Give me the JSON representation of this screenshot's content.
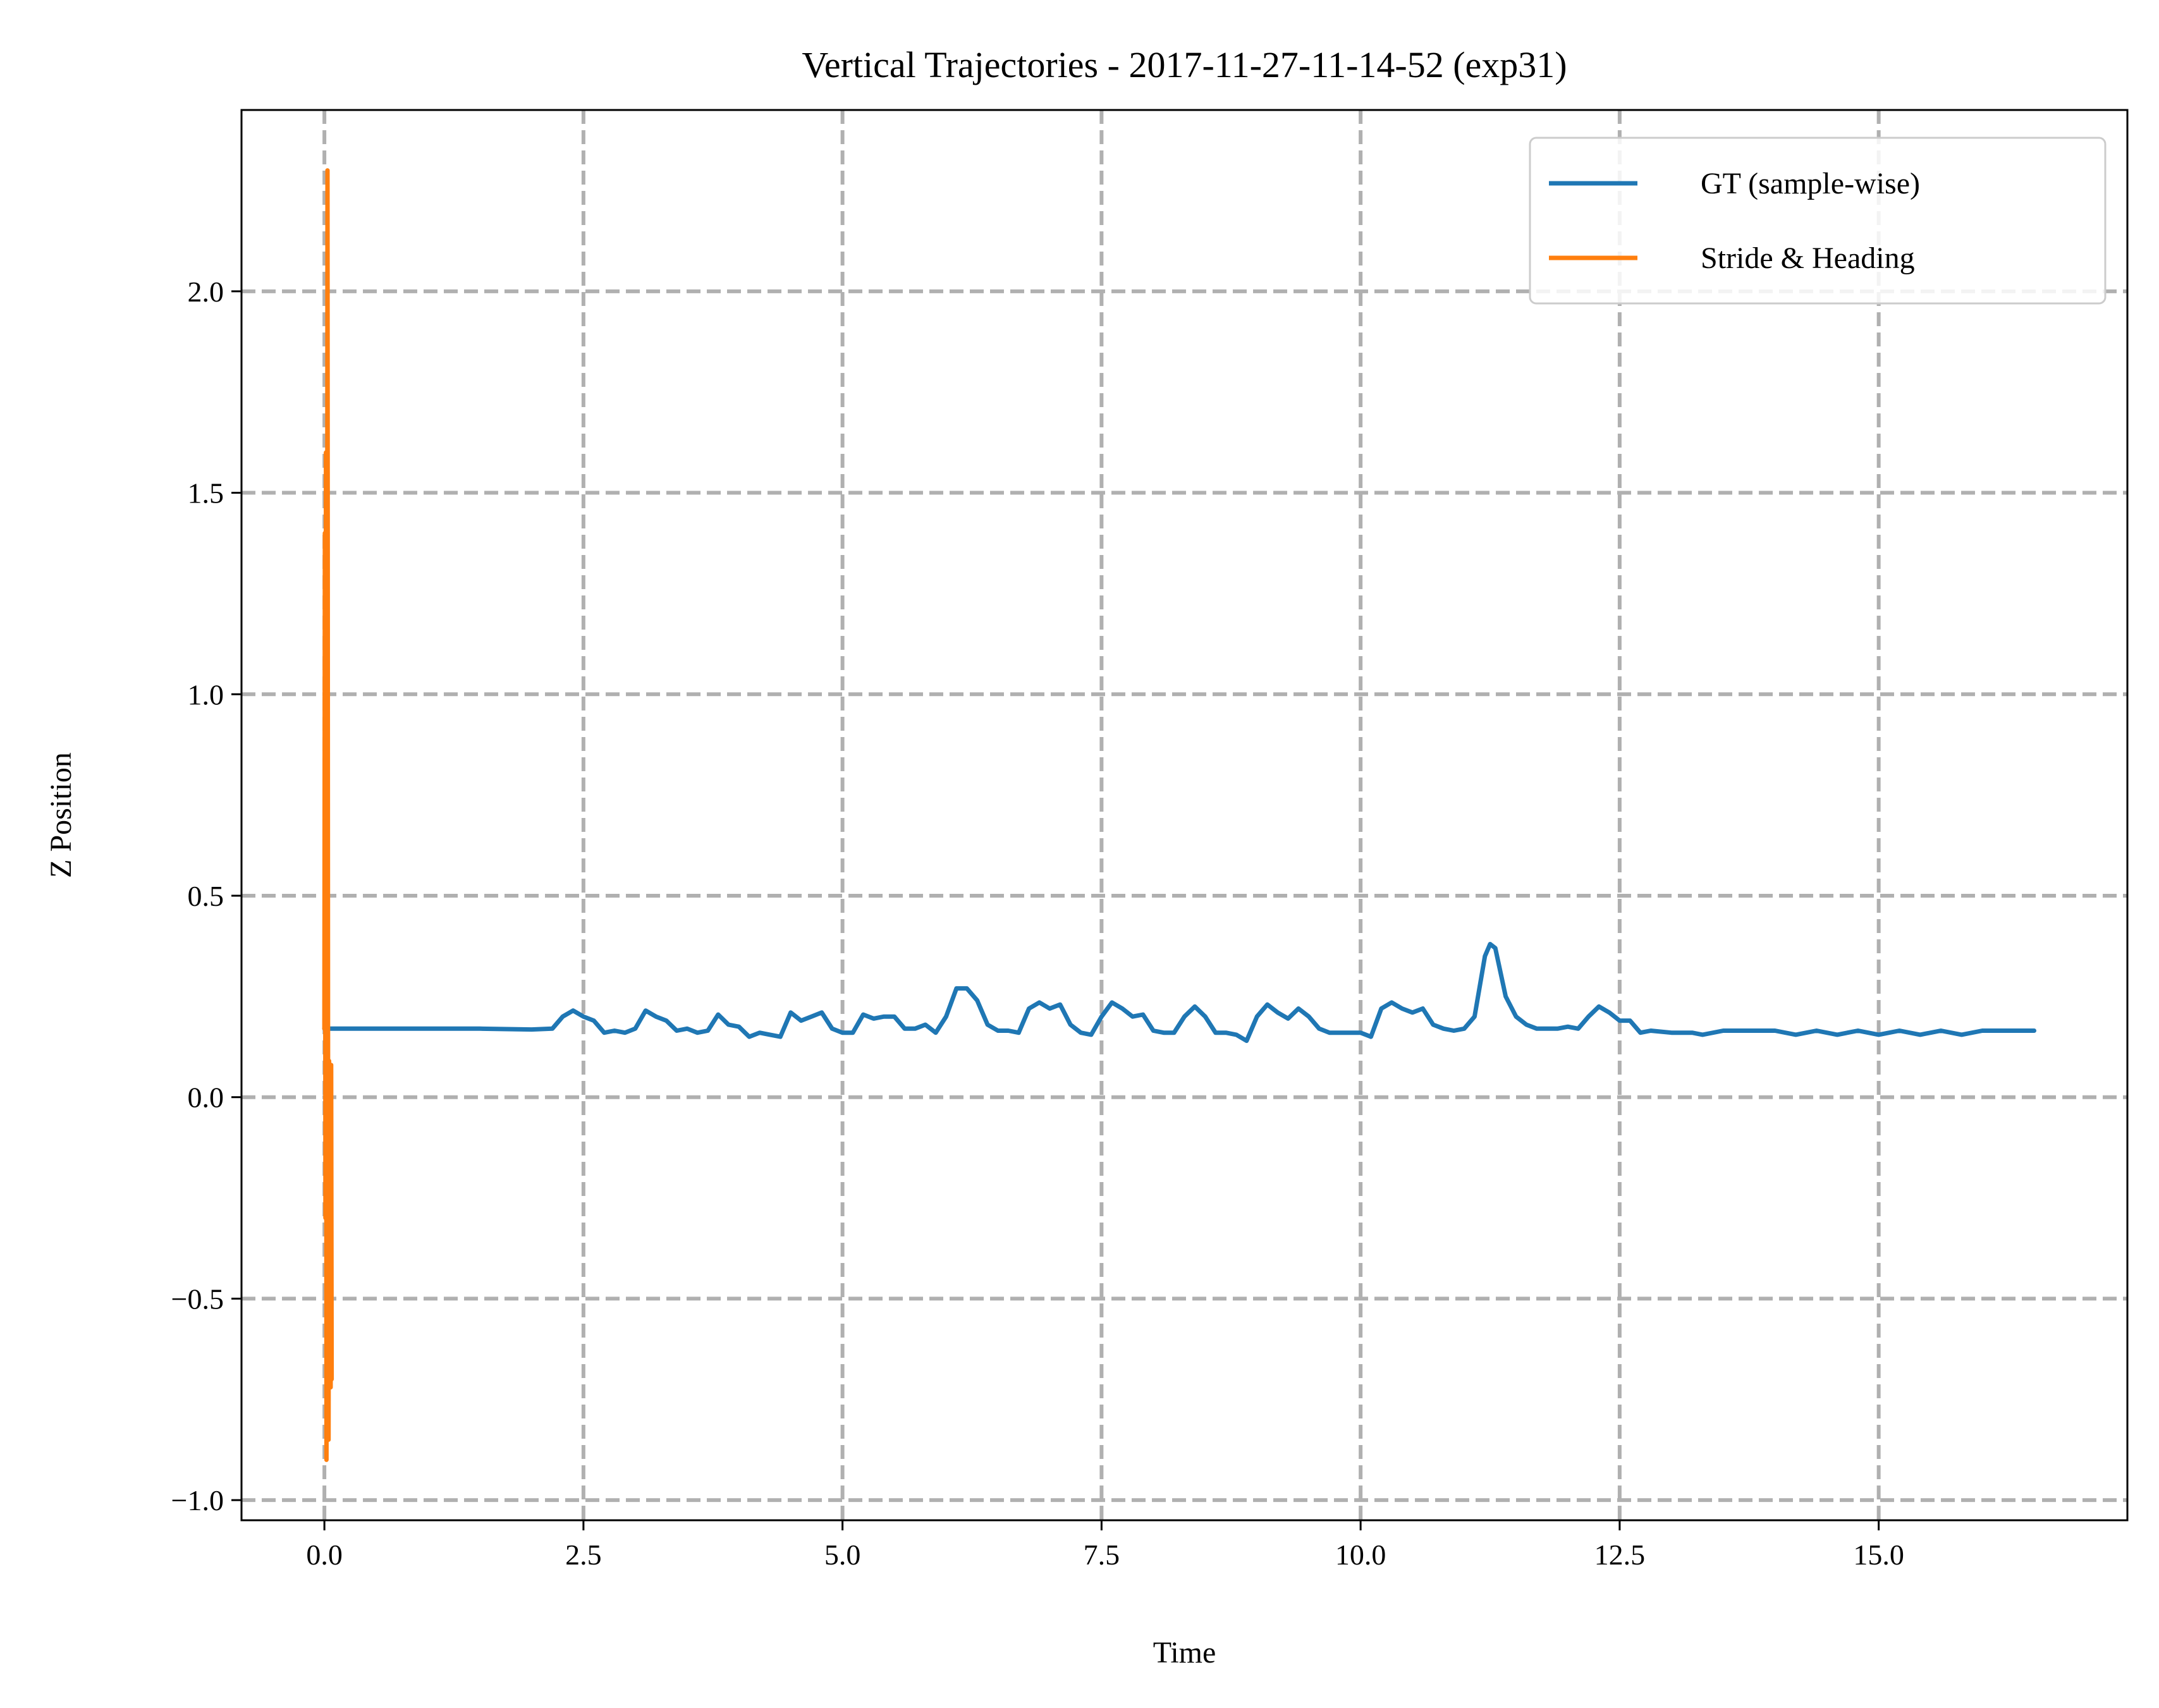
{
  "chart_data": {
    "type": "line",
    "title": "Vertical Trajectories - 2017-11-27-11-14-52 (exp31)",
    "xlabel": "Time",
    "ylabel": "Z Position",
    "xlim": [
      -0.8,
      17.4
    ],
    "ylim": [
      -1.05,
      2.45
    ],
    "xticks": [
      0.0,
      2.5,
      5.0,
      7.5,
      10.0,
      12.5,
      15.0
    ],
    "yticks": [
      -1.0,
      -0.5,
      0.0,
      0.5,
      1.0,
      1.5,
      2.0
    ],
    "xtick_labels": [
      "0.0",
      "2.5",
      "5.0",
      "7.5",
      "10.0",
      "12.5",
      "15.0"
    ],
    "ytick_labels": [
      "−1.0",
      "−0.5",
      "0.0",
      "0.5",
      "1.0",
      "1.5",
      "2.0"
    ],
    "grid": true,
    "legend_position": "top-right",
    "series": [
      {
        "name": "GT (sample-wise)",
        "color": "#1f77b4",
        "x": [
          0.0,
          0.5,
          1.0,
          1.5,
          2.0,
          2.2,
          2.3,
          2.4,
          2.5,
          2.6,
          2.7,
          2.8,
          2.9,
          3.0,
          3.1,
          3.2,
          3.3,
          3.4,
          3.5,
          3.6,
          3.7,
          3.8,
          3.9,
          4.0,
          4.1,
          4.2,
          4.3,
          4.4,
          4.5,
          4.6,
          4.7,
          4.8,
          4.9,
          5.0,
          5.1,
          5.2,
          5.3,
          5.4,
          5.5,
          5.6,
          5.7,
          5.8,
          5.9,
          6.0,
          6.1,
          6.2,
          6.3,
          6.4,
          6.5,
          6.6,
          6.7,
          6.8,
          6.9,
          7.0,
          7.1,
          7.2,
          7.3,
          7.4,
          7.5,
          7.6,
          7.7,
          7.8,
          7.9,
          8.0,
          8.1,
          8.2,
          8.3,
          8.4,
          8.5,
          8.6,
          8.7,
          8.8,
          8.9,
          9.0,
          9.1,
          9.2,
          9.3,
          9.4,
          9.5,
          9.6,
          9.7,
          9.8,
          9.9,
          10.0,
          10.1,
          10.2,
          10.3,
          10.4,
          10.5,
          10.6,
          10.7,
          10.8,
          10.9,
          11.0,
          11.1,
          11.2,
          11.25,
          11.3,
          11.4,
          11.5,
          11.6,
          11.7,
          11.8,
          11.9,
          12.0,
          12.1,
          12.2,
          12.3,
          12.4,
          12.5,
          12.6,
          12.7,
          12.8,
          13.0,
          13.2,
          13.3,
          13.5,
          14.0,
          14.2,
          14.4,
          14.6,
          14.8,
          15.0,
          15.2,
          15.4,
          15.6,
          15.8,
          16.0,
          16.5
        ],
        "y": [
          0.17,
          0.17,
          0.17,
          0.17,
          0.168,
          0.17,
          0.2,
          0.215,
          0.2,
          0.19,
          0.16,
          0.165,
          0.16,
          0.17,
          0.215,
          0.2,
          0.19,
          0.165,
          0.17,
          0.16,
          0.165,
          0.205,
          0.18,
          0.175,
          0.15,
          0.16,
          0.155,
          0.15,
          0.21,
          0.19,
          0.2,
          0.21,
          0.17,
          0.16,
          0.16,
          0.205,
          0.195,
          0.2,
          0.2,
          0.17,
          0.17,
          0.18,
          0.16,
          0.2,
          0.27,
          0.27,
          0.24,
          0.18,
          0.165,
          0.165,
          0.16,
          0.22,
          0.235,
          0.22,
          0.23,
          0.18,
          0.16,
          0.155,
          0.2,
          0.235,
          0.22,
          0.2,
          0.205,
          0.165,
          0.16,
          0.16,
          0.2,
          0.225,
          0.2,
          0.16,
          0.16,
          0.155,
          0.14,
          0.2,
          0.23,
          0.21,
          0.195,
          0.22,
          0.2,
          0.17,
          0.16,
          0.16,
          0.16,
          0.16,
          0.15,
          0.22,
          0.235,
          0.22,
          0.21,
          0.22,
          0.18,
          0.17,
          0.165,
          0.17,
          0.2,
          0.35,
          0.38,
          0.37,
          0.25,
          0.2,
          0.18,
          0.17,
          0.17,
          0.17,
          0.175,
          0.17,
          0.2,
          0.225,
          0.21,
          0.19,
          0.19,
          0.16,
          0.165,
          0.16,
          0.16,
          0.155,
          0.165,
          0.165,
          0.155,
          0.165,
          0.155,
          0.165,
          0.155,
          0.165,
          0.155,
          0.165,
          0.155,
          0.165,
          0.165
        ]
      },
      {
        "name": "Stride & Heading",
        "color": "#ff7f0e",
        "x": [
          0.0,
          0.005,
          0.01,
          0.015,
          0.02,
          0.025,
          0.03,
          0.035,
          0.04,
          0.045,
          0.05,
          0.055,
          0.06,
          0.065,
          0.07
        ],
        "y": [
          0.17,
          1.4,
          -0.3,
          1.6,
          -0.9,
          0.1,
          2.3,
          0.05,
          -0.85,
          0.09,
          -0.7,
          0.05,
          -0.72,
          0.08,
          -0.7
        ]
      }
    ]
  }
}
